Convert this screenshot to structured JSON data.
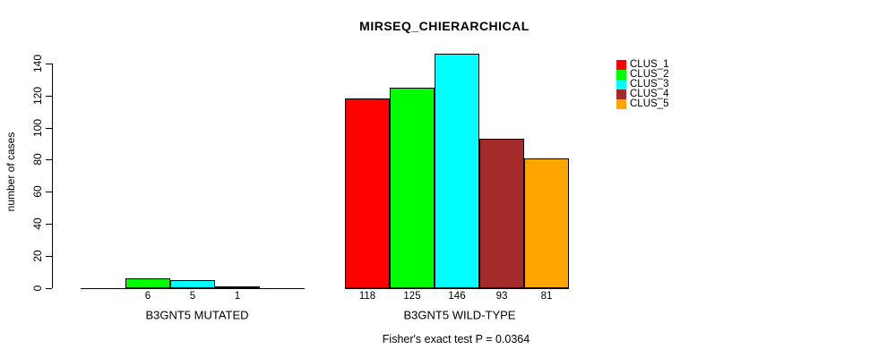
{
  "title": "MIRSEQ_CHIERARCHICAL",
  "footer": "Fisher's exact test P = 0.0364",
  "y_axis": {
    "label": "number of cases",
    "ticks": [
      0,
      20,
      40,
      60,
      80,
      100,
      120,
      140
    ]
  },
  "legend": {
    "position": "top-right",
    "items": [
      "CLUS_1",
      "CLUS_2",
      "CLUS_3",
      "CLUS_4",
      "CLUS_5"
    ]
  },
  "chart_data": {
    "type": "bar",
    "title": "MIRSEQ_CHIERARCHICAL",
    "subtitle": "Fisher's exact test P = 0.0364",
    "xlabel": "",
    "ylabel": "number of cases",
    "ylim": [
      0,
      146
    ],
    "yticks": [
      0,
      20,
      40,
      60,
      80,
      100,
      120,
      140
    ],
    "grid": false,
    "legend_position": "top-right",
    "categories": [
      "B3GNT5 MUTATED",
      "B3GNT5 WILD-TYPE"
    ],
    "series": [
      {
        "name": "CLUS_1",
        "color": "#FF0000",
        "values": [
          0,
          118
        ]
      },
      {
        "name": "CLUS_2",
        "color": "#00FF00",
        "values": [
          6,
          125
        ]
      },
      {
        "name": "CLUS_3",
        "color": "#00FFFF",
        "values": [
          5,
          146
        ]
      },
      {
        "name": "CLUS_4",
        "color": "#A52A2A",
        "values": [
          1,
          93
        ]
      },
      {
        "name": "CLUS_5",
        "color": "#FFA500",
        "values": [
          0,
          81
        ]
      }
    ],
    "bar_value_labels_shown": true,
    "zero_value_bars_hidden": true
  }
}
